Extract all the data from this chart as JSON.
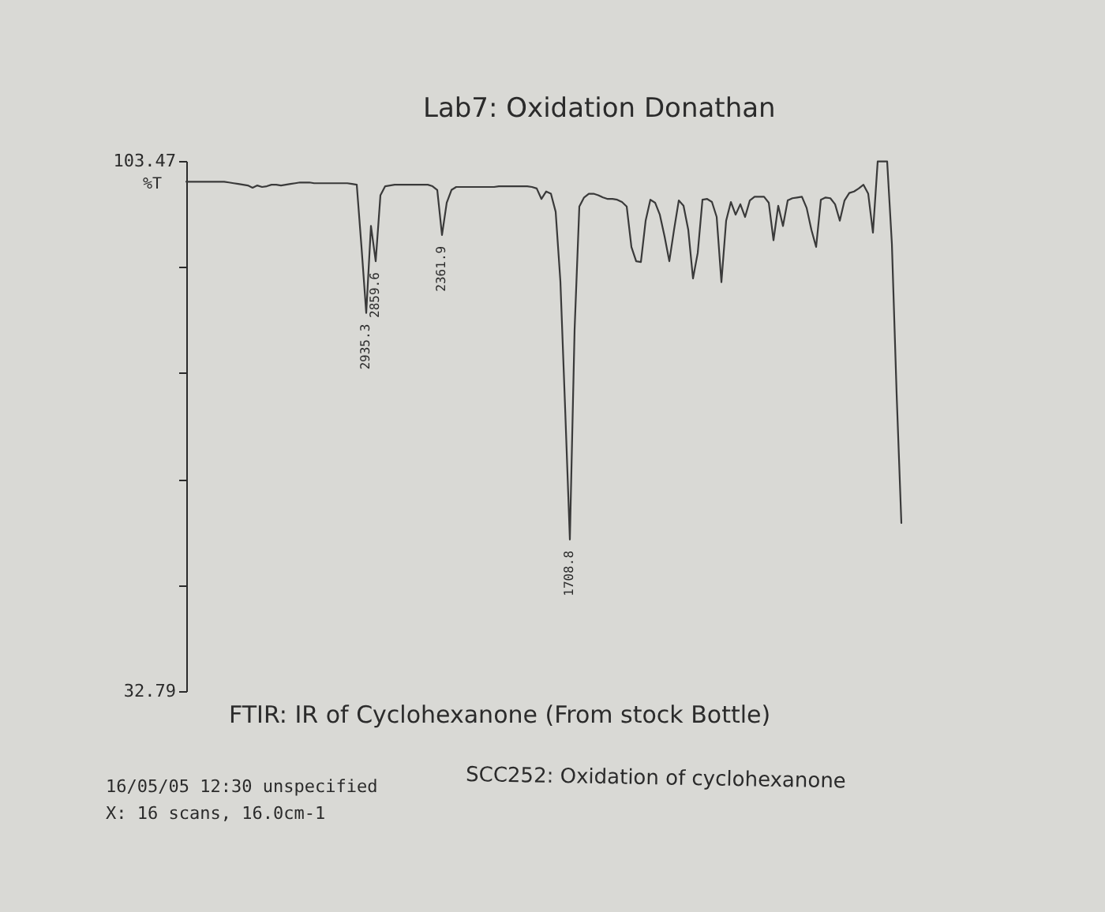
{
  "chart_data": {
    "type": "line",
    "title": "Lab7: Oxidation Donathan",
    "ylabel": "%T",
    "categories": [
      null,
      null,
      null,
      null,
      null,
      null,
      null,
      null,
      null,
      null,
      null,
      null,
      null,
      null,
      null,
      null,
      null,
      null,
      null,
      null,
      null,
      null,
      null,
      null,
      null,
      null,
      null,
      null,
      null,
      null,
      null,
      null,
      null,
      null,
      null,
      null,
      null,
      null,
      null,
      null,
      null,
      null,
      null,
      null,
      null,
      null,
      null,
      null,
      null,
      null,
      null,
      null,
      null,
      null,
      null,
      null,
      null,
      null,
      null,
      null,
      null,
      null,
      null,
      null,
      null,
      null,
      null,
      null,
      null,
      null,
      null,
      null,
      null,
      null,
      null,
      null,
      null,
      null,
      null,
      null,
      null,
      null,
      null,
      null,
      null,
      null,
      null,
      null,
      null,
      null,
      null,
      null,
      null,
      null,
      null,
      null,
      null,
      null,
      null,
      null,
      null,
      null,
      null,
      null,
      null,
      null,
      null,
      null,
      null,
      null,
      null,
      null,
      null,
      null,
      null,
      null,
      null,
      null,
      null,
      null,
      null,
      null,
      null,
      null,
      null,
      null,
      null,
      null,
      null,
      null,
      null,
      null,
      null,
      null,
      null,
      null,
      null,
      null,
      null,
      null,
      null,
      null,
      null,
      null,
      null,
      null,
      null,
      null,
      null,
      null,
      null,
      null
    ],
    "series": [
      {
        "color": "#3a3a3a",
        "values": [
          100.7,
          100.7,
          100.7,
          100.7,
          100.7,
          100.7,
          100.7,
          100.7,
          100.7,
          100.6,
          100.5,
          100.4,
          100.3,
          100.2,
          99.9,
          100.2,
          100.0,
          100.1,
          100.3,
          100.3,
          100.2,
          100.3,
          100.4,
          100.5,
          100.6,
          100.6,
          100.6,
          100.5,
          100.5,
          100.5,
          100.5,
          100.5,
          100.5,
          100.5,
          100.5,
          100.4,
          100.3,
          92.0,
          83.2,
          94.8,
          90.1,
          98.9,
          100.1,
          100.2,
          100.3,
          100.3,
          100.3,
          100.3,
          100.3,
          100.3,
          100.3,
          100.3,
          100.1,
          99.6,
          93.6,
          97.9,
          99.6,
          100.0,
          100.0,
          100.0,
          100.0,
          100.0,
          100.0,
          100.0,
          100.0,
          100.0,
          100.1,
          100.1,
          100.1,
          100.1,
          100.1,
          100.1,
          100.1,
          100.0,
          99.8,
          98.4,
          99.4,
          99.1,
          96.7,
          87.4,
          70.5,
          53.0,
          81.0,
          97.4,
          98.6,
          99.1,
          99.1,
          98.9,
          98.6,
          98.4,
          98.4,
          98.3,
          98.0,
          97.4,
          92.0,
          90.1,
          90.0,
          95.5,
          98.3,
          97.9,
          96.3,
          93.4,
          90.1,
          94.3,
          98.2,
          97.5,
          94.3,
          87.8,
          91.2,
          98.3,
          98.4,
          98.0,
          96.0,
          87.3,
          95.5,
          98.0,
          96.3,
          97.7,
          96.0,
          98.2,
          98.7,
          98.7,
          98.7,
          97.9,
          92.9,
          97.5,
          94.8,
          98.2,
          98.5,
          98.6,
          98.7,
          97.2,
          94.3,
          92.0,
          98.3,
          98.6,
          98.5,
          97.7,
          95.5,
          98.2,
          99.2,
          99.4,
          99.8,
          100.3,
          99.1,
          93.9,
          103.4,
          103.4,
          103.4,
          92.4,
          72.4,
          55.2
        ]
      }
    ],
    "ylim": [
      32.79,
      103.47
    ],
    "yticks": [
      103.47,
      {
        "value": 89.33,
        "label": null
      },
      {
        "value": 75.2,
        "label": null
      },
      {
        "value": 61.06,
        "label": null
      },
      {
        "value": 46.93,
        "label": null
      },
      32.79
    ],
    "tick_labels": "y",
    "annotations": [
      {
        "text": "2935.3",
        "y": 83.2
      },
      {
        "text": "2859.6",
        "y": 90.1
      },
      {
        "text": "2361.9",
        "y": 93.6
      },
      {
        "text": "1708.8",
        "y": 53.0
      },
      "FTIR: IR of Cyclohexanone (From stock Bottle)",
      "SCC252: Oxidation of cyclohexanone",
      "16/05/05 12:30 unspecified",
      "X: 16 scans, 16.0cm-1"
    ]
  }
}
